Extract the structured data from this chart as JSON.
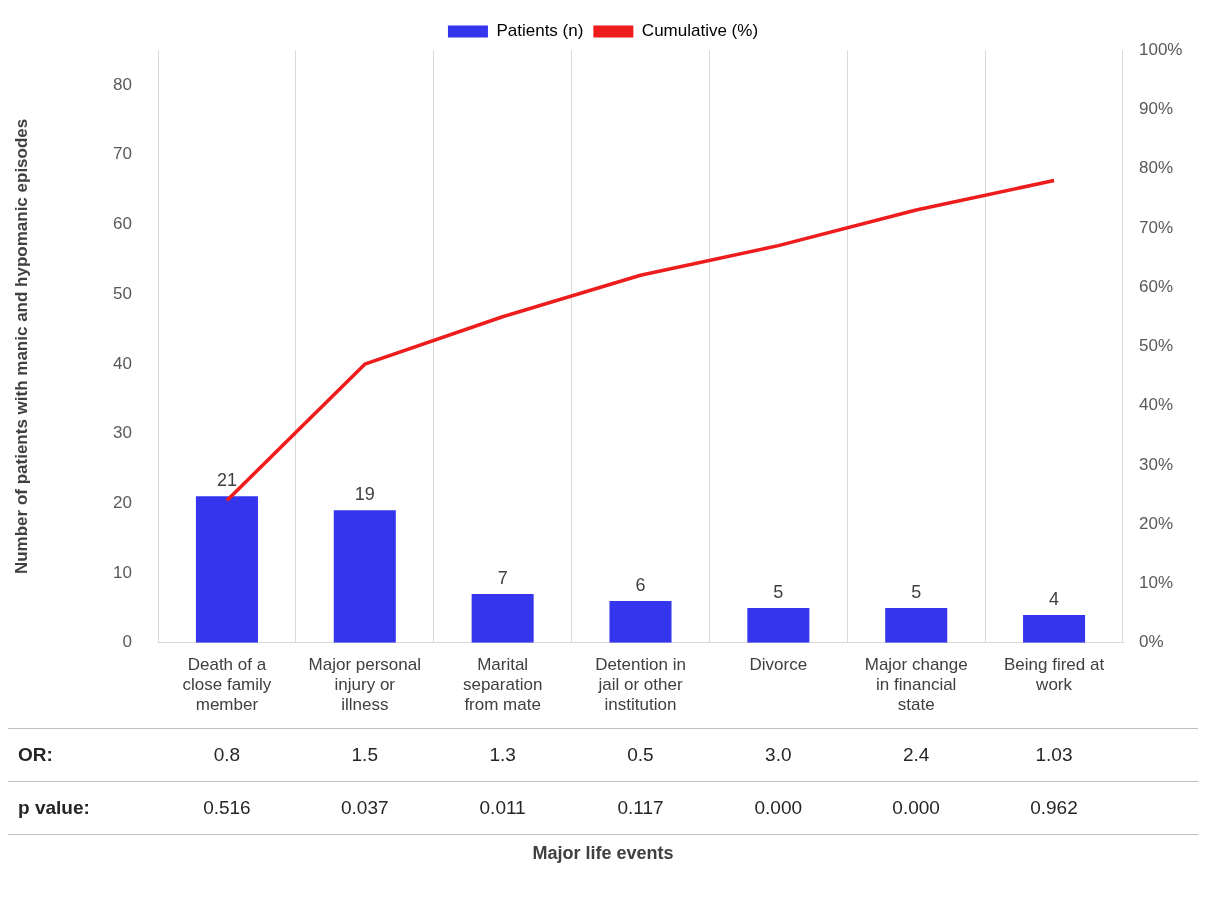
{
  "chart_data": {
    "type": "bar",
    "categories": [
      "Death of a close family member",
      "Major personal injury or illness",
      "Marital separation from mate",
      "Detention in jail or other institution",
      "Divorce",
      "Major change in financial state",
      "Being fired at work"
    ],
    "series": [
      {
        "name": "Patients (n)",
        "color": "#3535ee",
        "values": [
          21,
          19,
          7,
          6,
          5,
          5,
          4
        ],
        "value_labels": [
          "21",
          "19",
          "7",
          "6",
          "5",
          "5",
          "4"
        ]
      },
      {
        "name": "Cumulative (%)",
        "type": "line",
        "axis": "y2",
        "color": "#ee1c1c",
        "values": [
          24,
          47,
          55,
          62,
          67,
          73,
          78
        ]
      }
    ],
    "ylabel": "Number of patients with manic and hypomanic episodes",
    "ylim": [
      0,
      85
    ],
    "yticks": [
      0,
      10,
      20,
      30,
      40,
      50,
      60,
      70,
      80
    ],
    "y2lim": [
      0,
      100
    ],
    "y2ticks": [
      {
        "value": 0,
        "label": "0%"
      },
      {
        "value": 10,
        "label": "10%"
      },
      {
        "value": 20,
        "label": "20%"
      },
      {
        "value": 30,
        "label": "30%"
      },
      {
        "value": 40,
        "label": "40%"
      },
      {
        "value": 50,
        "label": "50%"
      },
      {
        "value": 60,
        "label": "60%"
      },
      {
        "value": 70,
        "label": "70%"
      },
      {
        "value": 80,
        "label": "80%"
      },
      {
        "value": 90,
        "label": "90%"
      },
      {
        "value": 100,
        "label": "100%"
      }
    ],
    "grid": "x",
    "legend": "top",
    "marker": "none",
    "annotations": [
      "OR:",
      "0.8",
      "1.5",
      "1.3",
      "0.5",
      "3.0",
      "2.4",
      "1.03",
      "p value:",
      "0.516",
      "0.037",
      "0.011",
      "0.117",
      "0.000",
      "0.000",
      "0.962",
      "Major life events"
    ]
  }
}
